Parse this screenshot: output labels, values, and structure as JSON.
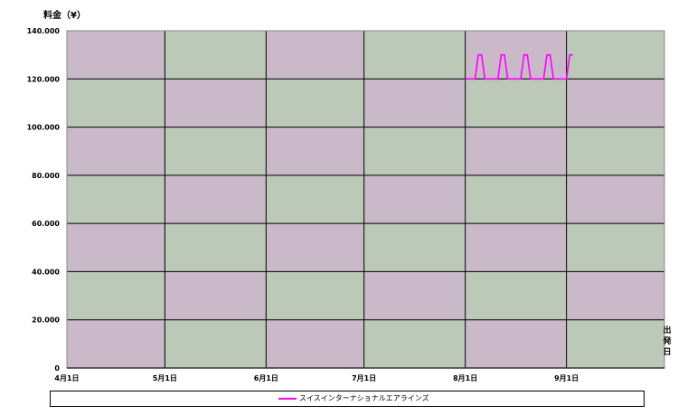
{
  "chart_data": {
    "type": "line",
    "ylabel": "料金（¥）",
    "xlabel": "出発日",
    "ylim": [
      0,
      140000
    ],
    "yticks": [
      0,
      20000,
      40000,
      60000,
      80000,
      100000,
      120000,
      140000
    ],
    "ytick_labels": [
      "0",
      "20.000",
      "40.000",
      "60.000",
      "80.000",
      "100.000",
      "120.000",
      "140.000"
    ],
    "xlim": [
      "04-01",
      "10-01"
    ],
    "xticks": [
      "04-01",
      "05-01",
      "06-01",
      "07-01",
      "08-01",
      "09-01"
    ],
    "xtick_labels": [
      "4月1日",
      "5月1日",
      "6月1日",
      "7月1日",
      "8月1日",
      "9月1日"
    ],
    "grid": true,
    "legend_position": "bottom",
    "series": [
      {
        "name": "スイスインターナショナルエアラインズ",
        "color": "#ff00ff",
        "x": [
          "08-01",
          "08-04",
          "08-05",
          "08-06",
          "08-07",
          "08-11",
          "08-12",
          "08-13",
          "08-14",
          "08-18",
          "08-19",
          "08-20",
          "08-21",
          "08-25",
          "08-26",
          "08-27",
          "08-28",
          "09-01",
          "09-02",
          "09-03"
        ],
        "y": [
          120000,
          120000,
          130000,
          130000,
          120000,
          120000,
          130000,
          130000,
          120000,
          120000,
          130000,
          130000,
          120000,
          120000,
          130000,
          130000,
          120000,
          120000,
          130000,
          130000
        ]
      }
    ]
  },
  "colors": {
    "cell_a": "#c9b9c9",
    "cell_b": "#bcc8b8",
    "grid": "#000000"
  }
}
